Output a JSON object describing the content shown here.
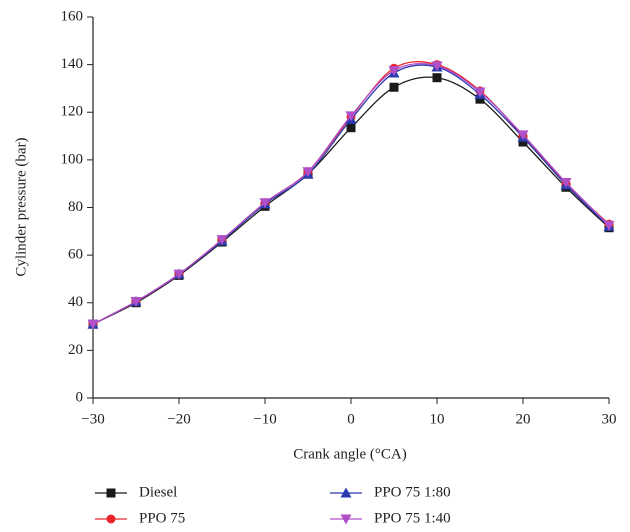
{
  "chart_data": {
    "type": "line",
    "x_label": "Crank angle (°CA)",
    "y_label": "Cylinder pressure (bar)",
    "x": [
      -30,
      -25,
      -20,
      -15,
      -10,
      -5,
      0,
      5,
      10,
      15,
      20,
      25,
      30
    ],
    "series": [
      {
        "name": "Diesel",
        "color": "#1a1a1a",
        "marker": "square",
        "values": [
          31,
          40,
          51.5,
          65.5,
          80.5,
          94,
          113.5,
          130.5,
          134.5,
          125.5,
          107.5,
          88.5,
          71.5
        ]
      },
      {
        "name": "PPO 75",
        "color": "#e8262a",
        "marker": "circle",
        "values": [
          31,
          40.5,
          52,
          66.5,
          82,
          95,
          118,
          138.5,
          140,
          129,
          110,
          90,
          73
        ]
      },
      {
        "name": "PPO 75 1:80",
        "color": "#2a3bb0",
        "marker": "triangle-up",
        "values": [
          31,
          40.5,
          52,
          66,
          81.5,
          94,
          117,
          136.5,
          139,
          127.5,
          109.5,
          89.5,
          72
        ]
      },
      {
        "name": "PPO 75 1:40",
        "color": "#b04fc8",
        "marker": "triangle-down",
        "values": [
          31,
          40.5,
          52,
          66.5,
          82,
          95,
          118.5,
          137.5,
          139.5,
          128.5,
          110.5,
          90.5,
          72.5
        ]
      }
    ],
    "xlim": [
      -30,
      30
    ],
    "xticks": [
      {
        "value": -30,
        "label": "−30"
      },
      {
        "value": -20,
        "label": "−20"
      },
      {
        "value": -10,
        "label": "−10"
      },
      0,
      10,
      20,
      30
    ],
    "ylim": [
      0,
      160
    ],
    "yticks": [
      0,
      20,
      40,
      60,
      80,
      100,
      120,
      140,
      160
    ],
    "grid": false,
    "legend": "bottom"
  }
}
